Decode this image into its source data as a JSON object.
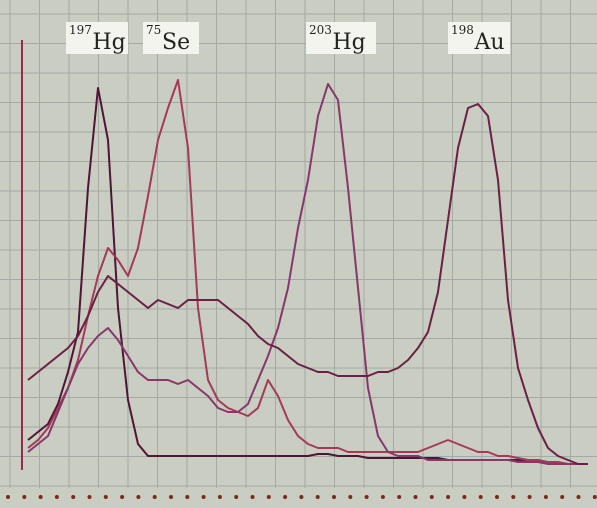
{
  "chart_data": {
    "type": "line",
    "annotations": [
      {
        "mass": "197",
        "symbol": "Hg"
      },
      {
        "mass": "75",
        "symbol": "Se"
      },
      {
        "mass": "203",
        "symbol": "Hg"
      },
      {
        "mass": "198",
        "symbol": "Au"
      }
    ],
    "x": [
      0,
      1,
      2,
      3,
      4,
      5,
      6,
      7,
      8,
      9,
      10,
      11,
      12,
      13,
      14,
      15,
      16,
      17,
      18,
      19,
      20,
      21,
      22,
      23,
      24,
      25,
      26,
      27,
      28,
      29,
      30,
      31,
      32,
      33,
      34,
      35,
      36,
      37,
      38,
      39,
      40,
      41,
      42,
      43,
      44,
      45,
      46,
      47,
      48,
      49,
      50,
      51,
      52,
      53,
      54,
      55,
      56
    ],
    "xlim": [
      0,
      56
    ],
    "ylim": [
      0,
      100
    ],
    "grid": true,
    "series": [
      {
        "color": "#4e1634",
        "values": [
          7,
          9,
          11,
          16,
          24,
          34,
          70,
          95,
          82,
          40,
          17,
          6,
          3,
          3,
          3,
          3,
          3,
          3,
          3,
          3,
          3,
          3,
          3,
          3,
          3,
          3,
          3,
          3,
          3,
          3.5,
          3.5,
          3,
          3,
          3,
          2.5,
          2.5,
          2.5,
          2.5,
          2.5,
          2.5,
          2.5,
          2.5,
          2,
          2,
          2,
          2,
          2,
          2,
          2,
          2,
          1.5,
          1.5,
          1.5,
          1,
          1,
          1,
          1
        ]
      },
      {
        "color": "#a23a58",
        "values": [
          5,
          7,
          10,
          15,
          20,
          27,
          38,
          48,
          55,
          52,
          48,
          55,
          68,
          82,
          90,
          97,
          80,
          40,
          22,
          17,
          15,
          14,
          13,
          15,
          22,
          18,
          12,
          8,
          6,
          5,
          5,
          5,
          4,
          4,
          4,
          4,
          4,
          4,
          4,
          4,
          5,
          6,
          7,
          6,
          5,
          4,
          4,
          3,
          3,
          2.5,
          2,
          2,
          1.5,
          1.5,
          1,
          1,
          1
        ]
      },
      {
        "color": "#86386a",
        "values": [
          4,
          6,
          8,
          14,
          20,
          26,
          30,
          33,
          35,
          32,
          28,
          24,
          22,
          22,
          22,
          21,
          22,
          20,
          18,
          15,
          14,
          14,
          16,
          22,
          28,
          35,
          45,
          60,
          72,
          88,
          96,
          92,
          70,
          45,
          20,
          8,
          4,
          3,
          3,
          3,
          2,
          2,
          2,
          2,
          2,
          2,
          2,
          2,
          2,
          1.5,
          1.5,
          1.5,
          1,
          1,
          1,
          1,
          1
        ]
      },
      {
        "color": "#6a2042",
        "values": [
          22,
          24,
          26,
          28,
          30,
          33,
          38,
          44,
          48,
          46,
          44,
          42,
          40,
          42,
          41,
          40,
          42,
          42,
          42,
          42,
          40,
          38,
          36,
          33,
          31,
          30,
          28,
          26,
          25,
          24,
          24,
          23,
          23,
          23,
          23,
          24,
          24,
          25,
          27,
          30,
          34,
          44,
          62,
          80,
          90,
          91,
          88,
          72,
          42,
          25,
          17,
          10,
          5,
          3,
          2,
          1,
          1
        ]
      }
    ]
  }
}
